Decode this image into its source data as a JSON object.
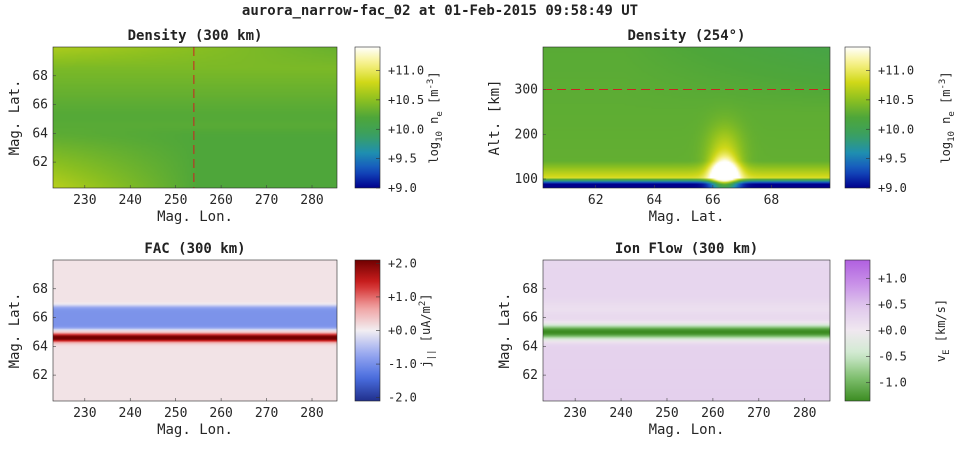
{
  "figure": {
    "title": "aurora_narrow-fac_02 at 01-Feb-2015 09:58:49 UT"
  },
  "colormaps": {
    "density": [
      "#00008c",
      "#1550c0",
      "#1f8fb0",
      "#3aa060",
      "#4ea63a",
      "#8cc020",
      "#d0d818",
      "#f6f080",
      "#ffffff"
    ],
    "fac": [
      "#202f8c",
      "#4a6ee0",
      "#98a8f0",
      "#f2eef2",
      "#f0a0a0",
      "#d02020",
      "#700000"
    ],
    "flow": [
      "#3c8c22",
      "#80c070",
      "#d0ead0",
      "#f0e8f0",
      "#e0c8ec",
      "#c890e8",
      "#b060e0"
    ]
  },
  "chart_data": [
    {
      "id": "density-300km",
      "type": "heatmap",
      "title": "Density (300 km)",
      "xlabel": "Mag. Lon.",
      "ylabel": "Mag. Lat.",
      "xlim": [
        223,
        285.5
      ],
      "ylim": [
        60.2,
        70.0
      ],
      "xticks": [
        "230",
        "240",
        "250",
        "260",
        "270",
        "280"
      ],
      "xtick_values": [
        230,
        240,
        250,
        260,
        270,
        280
      ],
      "yticks": [
        "62",
        "64",
        "66",
        "68"
      ],
      "ytick_values": [
        62,
        64,
        66,
        68
      ],
      "field": "density_map",
      "colormap": "density",
      "clim": [
        9.0,
        11.4
      ],
      "cut_line": {
        "axis": "x",
        "value": 254,
        "color": "#cc2222"
      },
      "colorbar": {
        "label": "log10 ne [m-3]",
        "label_main": "log",
        "label_sub": "10",
        "label_mid": " n",
        "label_sub2": "e",
        "label_unit": " [m",
        "label_sup": "-3",
        "label_end": "]",
        "ticks": [
          "+9.0",
          "+9.5",
          "+10.0",
          "+10.5",
          "+11.0"
        ],
        "tick_values": [
          9.0,
          9.5,
          10.0,
          10.5,
          11.0
        ]
      }
    },
    {
      "id": "density-254deg",
      "type": "heatmap",
      "title": "Density (254°)",
      "xlabel": "Mag. Lat.",
      "ylabel": "Alt. [km]",
      "xlim": [
        60.2,
        70.0
      ],
      "ylim": [
        80,
        395
      ],
      "xticks": [
        "62",
        "64",
        "66",
        "68"
      ],
      "xtick_values": [
        62,
        64,
        66,
        68
      ],
      "yticks": [
        "100",
        "200",
        "300"
      ],
      "ytick_values": [
        100,
        200,
        300
      ],
      "field": "density_alt",
      "colormap": "density",
      "clim": [
        9.0,
        11.4
      ],
      "cut_line": {
        "axis": "y",
        "value": 300,
        "color": "#cc2222"
      },
      "colorbar": {
        "label": "log10 ne [m-3]",
        "label_main": "log",
        "label_sub": "10",
        "label_mid": " n",
        "label_sub2": "e",
        "label_unit": " [m",
        "label_sup": "-3",
        "label_end": "]",
        "ticks": [
          "+9.0",
          "+9.5",
          "+10.0",
          "+10.5",
          "+11.0"
        ],
        "tick_values": [
          9.0,
          9.5,
          10.0,
          10.5,
          11.0
        ]
      }
    },
    {
      "id": "fac-300km",
      "type": "heatmap",
      "title": "FAC (300 km)",
      "xlabel": "Mag. Lon.",
      "ylabel": "Mag. Lat.",
      "xlim": [
        223,
        285.5
      ],
      "ylim": [
        60.2,
        70.0
      ],
      "xticks": [
        "230",
        "240",
        "250",
        "260",
        "270",
        "280"
      ],
      "xtick_values": [
        230,
        240,
        250,
        260,
        270,
        280
      ],
      "yticks": [
        "62",
        "64",
        "66",
        "68"
      ],
      "ytick_values": [
        62,
        64,
        66,
        68
      ],
      "field": "fac_map",
      "colormap": "fac",
      "clim": [
        -2.1,
        2.1
      ],
      "colorbar": {
        "label": "j|| [uA/m2]",
        "label_main": "j",
        "label_sub": "||",
        "label_mid": "",
        "label_sub2": "",
        "label_unit": " [uA/m",
        "label_sup": "2",
        "label_end": "]",
        "ticks": [
          "-2.0",
          "-1.0",
          "+0.0",
          "+1.0",
          "+2.0"
        ],
        "tick_values": [
          -2.0,
          -1.0,
          0.0,
          1.0,
          2.0
        ]
      }
    },
    {
      "id": "ion-flow-300km",
      "type": "heatmap",
      "title": "Ion Flow (300 km)",
      "xlabel": "Mag. Lon.",
      "ylabel": "Mag. Lat.",
      "xlim": [
        223,
        285.5
      ],
      "ylim": [
        60.2,
        70.0
      ],
      "xticks": [
        "230",
        "240",
        "250",
        "260",
        "270",
        "280"
      ],
      "xtick_values": [
        230,
        240,
        250,
        260,
        270,
        280
      ],
      "yticks": [
        "62",
        "64",
        "66",
        "68"
      ],
      "ytick_values": [
        62,
        64,
        66,
        68
      ],
      "field": "flow_map",
      "colormap": "flow",
      "clim": [
        -1.35,
        1.35
      ],
      "colorbar": {
        "label": "vE [km/s]",
        "label_main": "v",
        "label_sub": "E",
        "label_mid": "",
        "label_sub2": "",
        "label_unit": " [km/s]",
        "label_sup": "",
        "label_end": "",
        "ticks": [
          "-1.0",
          "-0.5",
          "+0.0",
          "+0.5",
          "+1.0"
        ],
        "tick_values": [
          -1.0,
          -0.5,
          0.0,
          0.5,
          1.0
        ]
      }
    }
  ]
}
